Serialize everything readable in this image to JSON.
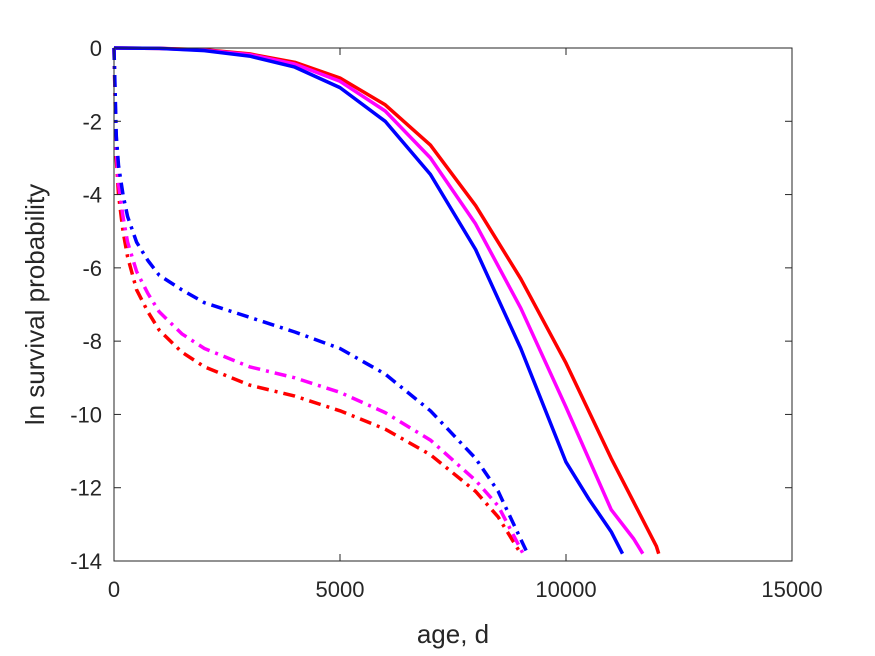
{
  "chart_data": {
    "type": "line",
    "xlabel": "age, d",
    "ylabel": "ln survival probability",
    "xlim": [
      0,
      15000
    ],
    "ylim": [
      -14,
      0
    ],
    "xticks": [
      0,
      5000,
      10000,
      15000
    ],
    "yticks": [
      0,
      -2,
      -4,
      -6,
      -8,
      -10,
      -12,
      -14
    ],
    "grid": false,
    "legend": "none",
    "series": [
      {
        "color": "#ff0000",
        "style": "solid",
        "x": [
          0,
          1000,
          2000,
          3000,
          4000,
          5000,
          6000,
          7000,
          8000,
          9000,
          10000,
          11000,
          12000,
          12050
        ],
        "y": [
          0,
          -0.01,
          -0.05,
          -0.16,
          -0.39,
          -0.82,
          -1.55,
          -2.65,
          -4.3,
          -6.3,
          -8.6,
          -11.2,
          -13.6,
          -13.8
        ]
      },
      {
        "color": "#ff00ff",
        "style": "solid",
        "x": [
          0,
          1000,
          2000,
          3000,
          4000,
          5000,
          6000,
          7000,
          8000,
          9000,
          10000,
          11000,
          11500,
          11700
        ],
        "y": [
          0,
          -0.01,
          -0.06,
          -0.18,
          -0.44,
          -0.91,
          -1.72,
          -3.0,
          -4.8,
          -7.1,
          -9.8,
          -12.6,
          -13.4,
          -13.8
        ]
      },
      {
        "color": "#0000ff",
        "style": "solid",
        "x": [
          0,
          1000,
          2000,
          3000,
          4000,
          5000,
          6000,
          7000,
          8000,
          9000,
          10000,
          10500,
          11000,
          11250
        ],
        "y": [
          0,
          -0.01,
          -0.07,
          -0.22,
          -0.52,
          -1.08,
          -2.0,
          -3.45,
          -5.5,
          -8.2,
          -11.3,
          -12.3,
          -13.2,
          -13.8
        ]
      },
      {
        "color": "#ff0000",
        "style": "dashdot",
        "x": [
          0,
          50,
          100,
          200,
          300,
          500,
          750,
          1000,
          1500,
          2000,
          3000,
          4000,
          5000,
          6000,
          7000,
          8000,
          8500,
          9000
        ],
        "y": [
          0,
          -3.0,
          -4.0,
          -5.0,
          -5.7,
          -6.6,
          -7.2,
          -7.7,
          -8.3,
          -8.7,
          -9.2,
          -9.5,
          -9.9,
          -10.4,
          -11.1,
          -12.1,
          -12.8,
          -13.8
        ]
      },
      {
        "color": "#ff00ff",
        "style": "dashdot",
        "x": [
          0,
          50,
          100,
          200,
          300,
          500,
          750,
          1000,
          1500,
          2000,
          3000,
          4000,
          5000,
          6000,
          7000,
          8000,
          8500,
          9050
        ],
        "y": [
          0,
          -2.8,
          -3.7,
          -4.6,
          -5.3,
          -6.1,
          -6.7,
          -7.2,
          -7.8,
          -8.2,
          -8.7,
          -9.0,
          -9.4,
          -9.95,
          -10.7,
          -11.8,
          -12.5,
          -13.8
        ]
      },
      {
        "color": "#0000ff",
        "style": "dashdot",
        "x": [
          0,
          50,
          100,
          200,
          300,
          500,
          750,
          1000,
          1500,
          2000,
          3000,
          4000,
          5000,
          6000,
          7000,
          8000,
          8500,
          9150
        ],
        "y": [
          0,
          -2.4,
          -3.2,
          -4.0,
          -4.6,
          -5.3,
          -5.8,
          -6.2,
          -6.6,
          -6.95,
          -7.35,
          -7.75,
          -8.2,
          -8.9,
          -9.9,
          -11.2,
          -12.1,
          -13.8
        ]
      }
    ]
  }
}
